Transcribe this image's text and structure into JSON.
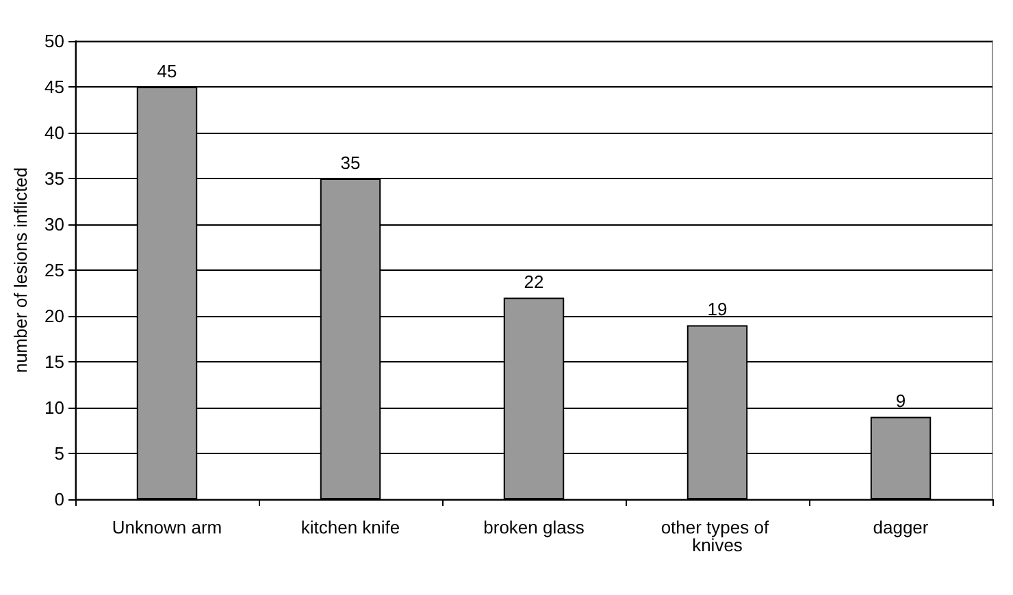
{
  "chart_data": {
    "type": "bar",
    "ylabel": "number of lesions inflicted",
    "categories": [
      "Unknown arm",
      "kitchen knife",
      "broken glass",
      "other types of knives",
      "dagger"
    ],
    "values": [
      45,
      35,
      22,
      19,
      9
    ],
    "color": "#999999",
    "ylim": [
      0,
      50
    ],
    "yticks": [
      0,
      5,
      10,
      15,
      20,
      25,
      30,
      35,
      40,
      45,
      50
    ],
    "grid": "y",
    "data_labels": true
  }
}
